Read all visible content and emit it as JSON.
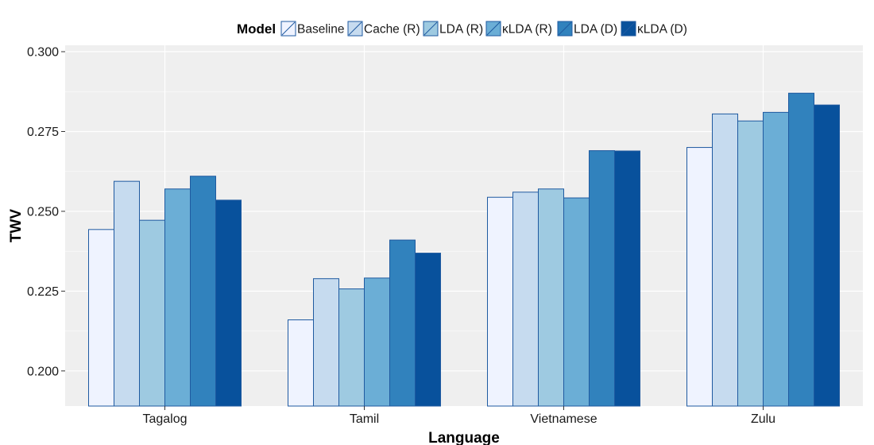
{
  "chart_data": {
    "type": "bar",
    "xlabel": "Language",
    "ylabel": "TWV",
    "ylim": [
      0.189,
      0.302
    ],
    "yticks": [
      "0.200",
      "0.225",
      "0.250",
      "0.275",
      "0.300"
    ],
    "categories": [
      "Tagalog",
      "Tamil",
      "Vietnamese",
      "Zulu"
    ],
    "legend_title": "Model",
    "legend_position": "top",
    "grid": true,
    "series": [
      {
        "name": "Baseline",
        "color": "#eff3ff",
        "values": [
          0.2443,
          0.216,
          0.2544,
          0.27
        ]
      },
      {
        "name": "Cache (R)",
        "color": "#c6dbef",
        "values": [
          0.2594,
          0.2289,
          0.256,
          0.2805
        ]
      },
      {
        "name": "LDA (R)",
        "color": "#9ecae1",
        "values": [
          0.2472,
          0.2257,
          0.257,
          0.2783
        ]
      },
      {
        "name": "κLDA (R)",
        "color": "#6baed6",
        "values": [
          0.257,
          0.2291,
          0.2542,
          0.281
        ]
      },
      {
        "name": "LDA (D)",
        "color": "#3182bd",
        "values": [
          0.261,
          0.241,
          0.269,
          0.287
        ]
      },
      {
        "name": "κLDA (D)",
        "color": "#08519c",
        "values": [
          0.2535,
          0.2369,
          0.2689,
          0.2833
        ]
      }
    ]
  },
  "colors": {
    "panel_background": "#efefef",
    "grid": "#ffffff",
    "bar_outline": "#1f5aa0"
  }
}
